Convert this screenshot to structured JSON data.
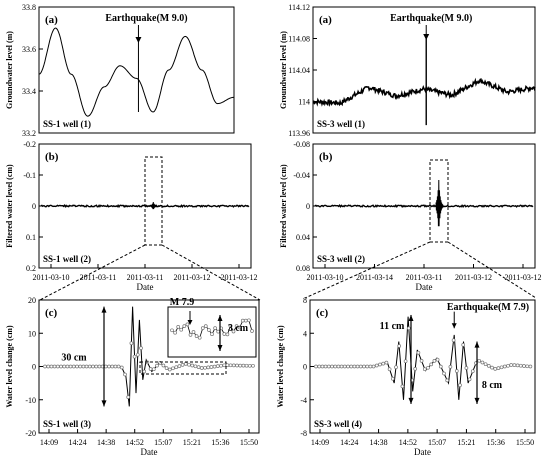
{
  "chart_data": [
    {
      "id": "ss1_raw",
      "type": "line",
      "panel_label": "(a)",
      "well_label": "SS-1 well (1)",
      "ylabel": "Groundwater level (m)",
      "ylim": [
        33.2,
        33.8
      ],
      "yticks": [
        "33.8",
        "33.6",
        "33.4",
        "33.2"
      ],
      "annotation": "Earthquake(M 9.0)",
      "xlim": [
        0,
        2
      ],
      "series": [
        {
          "x": [
            0.0,
            0.17,
            0.33,
            0.5,
            0.67,
            0.83,
            1.0,
            1.17,
            1.33,
            1.5,
            1.67,
            1.83,
            2.0
          ],
          "y": [
            33.48,
            33.7,
            33.48,
            33.28,
            33.42,
            33.52,
            33.46,
            33.3,
            33.5,
            33.66,
            33.5,
            33.34,
            33.37
          ]
        }
      ]
    },
    {
      "id": "ss3_raw",
      "type": "line",
      "panel_label": "(a)",
      "well_label": "SS-3 well (1)",
      "ylabel": "Groundwater level (m)",
      "ylim": [
        113.96,
        114.12
      ],
      "yticks": [
        "114.12",
        "114.08",
        "114.04",
        "114",
        "113.96"
      ],
      "annotation": "Earthquake(M 9.0)",
      "xlim": [
        0,
        2
      ],
      "series": [
        {
          "x": [
            0.0,
            0.25,
            0.5,
            0.75,
            1.0,
            1.25,
            1.5,
            1.75,
            2.0
          ],
          "y": [
            114.0,
            113.998,
            114.018,
            114.007,
            114.016,
            114.008,
            114.027,
            114.012,
            114.018
          ]
        }
      ]
    },
    {
      "id": "ss1_filtered",
      "type": "line",
      "panel_label": "(b)",
      "well_label": "SS-1 well (2)",
      "ylabel": "Filtered water level (cm)",
      "ylim": [
        -0.2,
        0.2
      ],
      "yticks": [
        "-0.2",
        "-0.1",
        "0",
        "0.1",
        "0.2"
      ],
      "categories": [
        "2011-03-10",
        "2011-03-11",
        "2011-03-11",
        "2011-03-12",
        "2011-03-12"
      ],
      "xlabel": "Date",
      "xlim": [
        0,
        2
      ]
    },
    {
      "id": "ss3_filtered",
      "type": "line",
      "panel_label": "(b)",
      "well_label": "SS-3 well (2)",
      "ylabel": "Filtered water level (cm)",
      "ylim": [
        -0.08,
        0.08
      ],
      "yticks": [
        "-0.08",
        "-0.04",
        "0",
        "0.04",
        "0.08"
      ],
      "categories": [
        "2011-03-10",
        "2011-03-14",
        "2011-03-11",
        "2011-03-12",
        "2011-03-12"
      ],
      "xlabel": "Date",
      "xlim": [
        0,
        2
      ]
    },
    {
      "id": "ss1_change",
      "type": "line",
      "panel_label": "(c)",
      "well_label": "SS-1 well (3)",
      "ylabel": "Water level change (cm)",
      "ylim": [
        -20,
        20
      ],
      "yticks": [
        "20",
        "10",
        "0",
        "-10",
        "-20"
      ],
      "categories": [
        "14:09",
        "14:24",
        "14:38",
        "14:52",
        "15:07",
        "15:21",
        "15:36",
        "15:50"
      ],
      "xlabel": "Date",
      "annotations": [
        "30 cm",
        "M 7.9",
        "3 cm"
      ],
      "series": [
        {
          "x": [
            14.15,
            14.5,
            14.78,
            14.82,
            14.85,
            14.88,
            14.91,
            14.94,
            14.97,
            15.0,
            15.05,
            15.12,
            15.2,
            15.35,
            15.5,
            15.7,
            15.93
          ],
          "y": [
            0,
            0,
            0,
            -3,
            -12,
            18,
            -8,
            14,
            -4,
            2,
            -1.5,
            1.2,
            -1,
            0.8,
            -0.5,
            0.4,
            0.2
          ]
        }
      ]
    },
    {
      "id": "ss3_change",
      "type": "line",
      "panel_label": "(c)",
      "well_label": "SS-3 well (4)",
      "ylabel": "Water level change (cm)",
      "ylim": [
        -8,
        8
      ],
      "yticks": [
        "8",
        "4",
        "0",
        "-4",
        "-8"
      ],
      "categories": [
        "14:09",
        "14:24",
        "14:38",
        "14:52",
        "15:07",
        "15:21",
        "15:36",
        "15:50"
      ],
      "xlabel": "Date",
      "annotations": [
        "11 cm",
        "Earthquake(M 7.9)",
        "8 cm"
      ],
      "series": [
        {
          "x": [
            14.15,
            14.6,
            14.72,
            14.78,
            14.82,
            14.86,
            14.9,
            14.94,
            14.98,
            15.05,
            15.15,
            15.25,
            15.3,
            15.34,
            15.38,
            15.42,
            15.5,
            15.65,
            15.8,
            15.95
          ],
          "y": [
            0,
            0,
            0.5,
            -2,
            3,
            -4,
            6,
            -3,
            2,
            -0.5,
            1,
            -2,
            3.8,
            -4,
            3,
            -2,
            0.8,
            -0.3,
            0.2,
            0
          ]
        }
      ]
    }
  ]
}
